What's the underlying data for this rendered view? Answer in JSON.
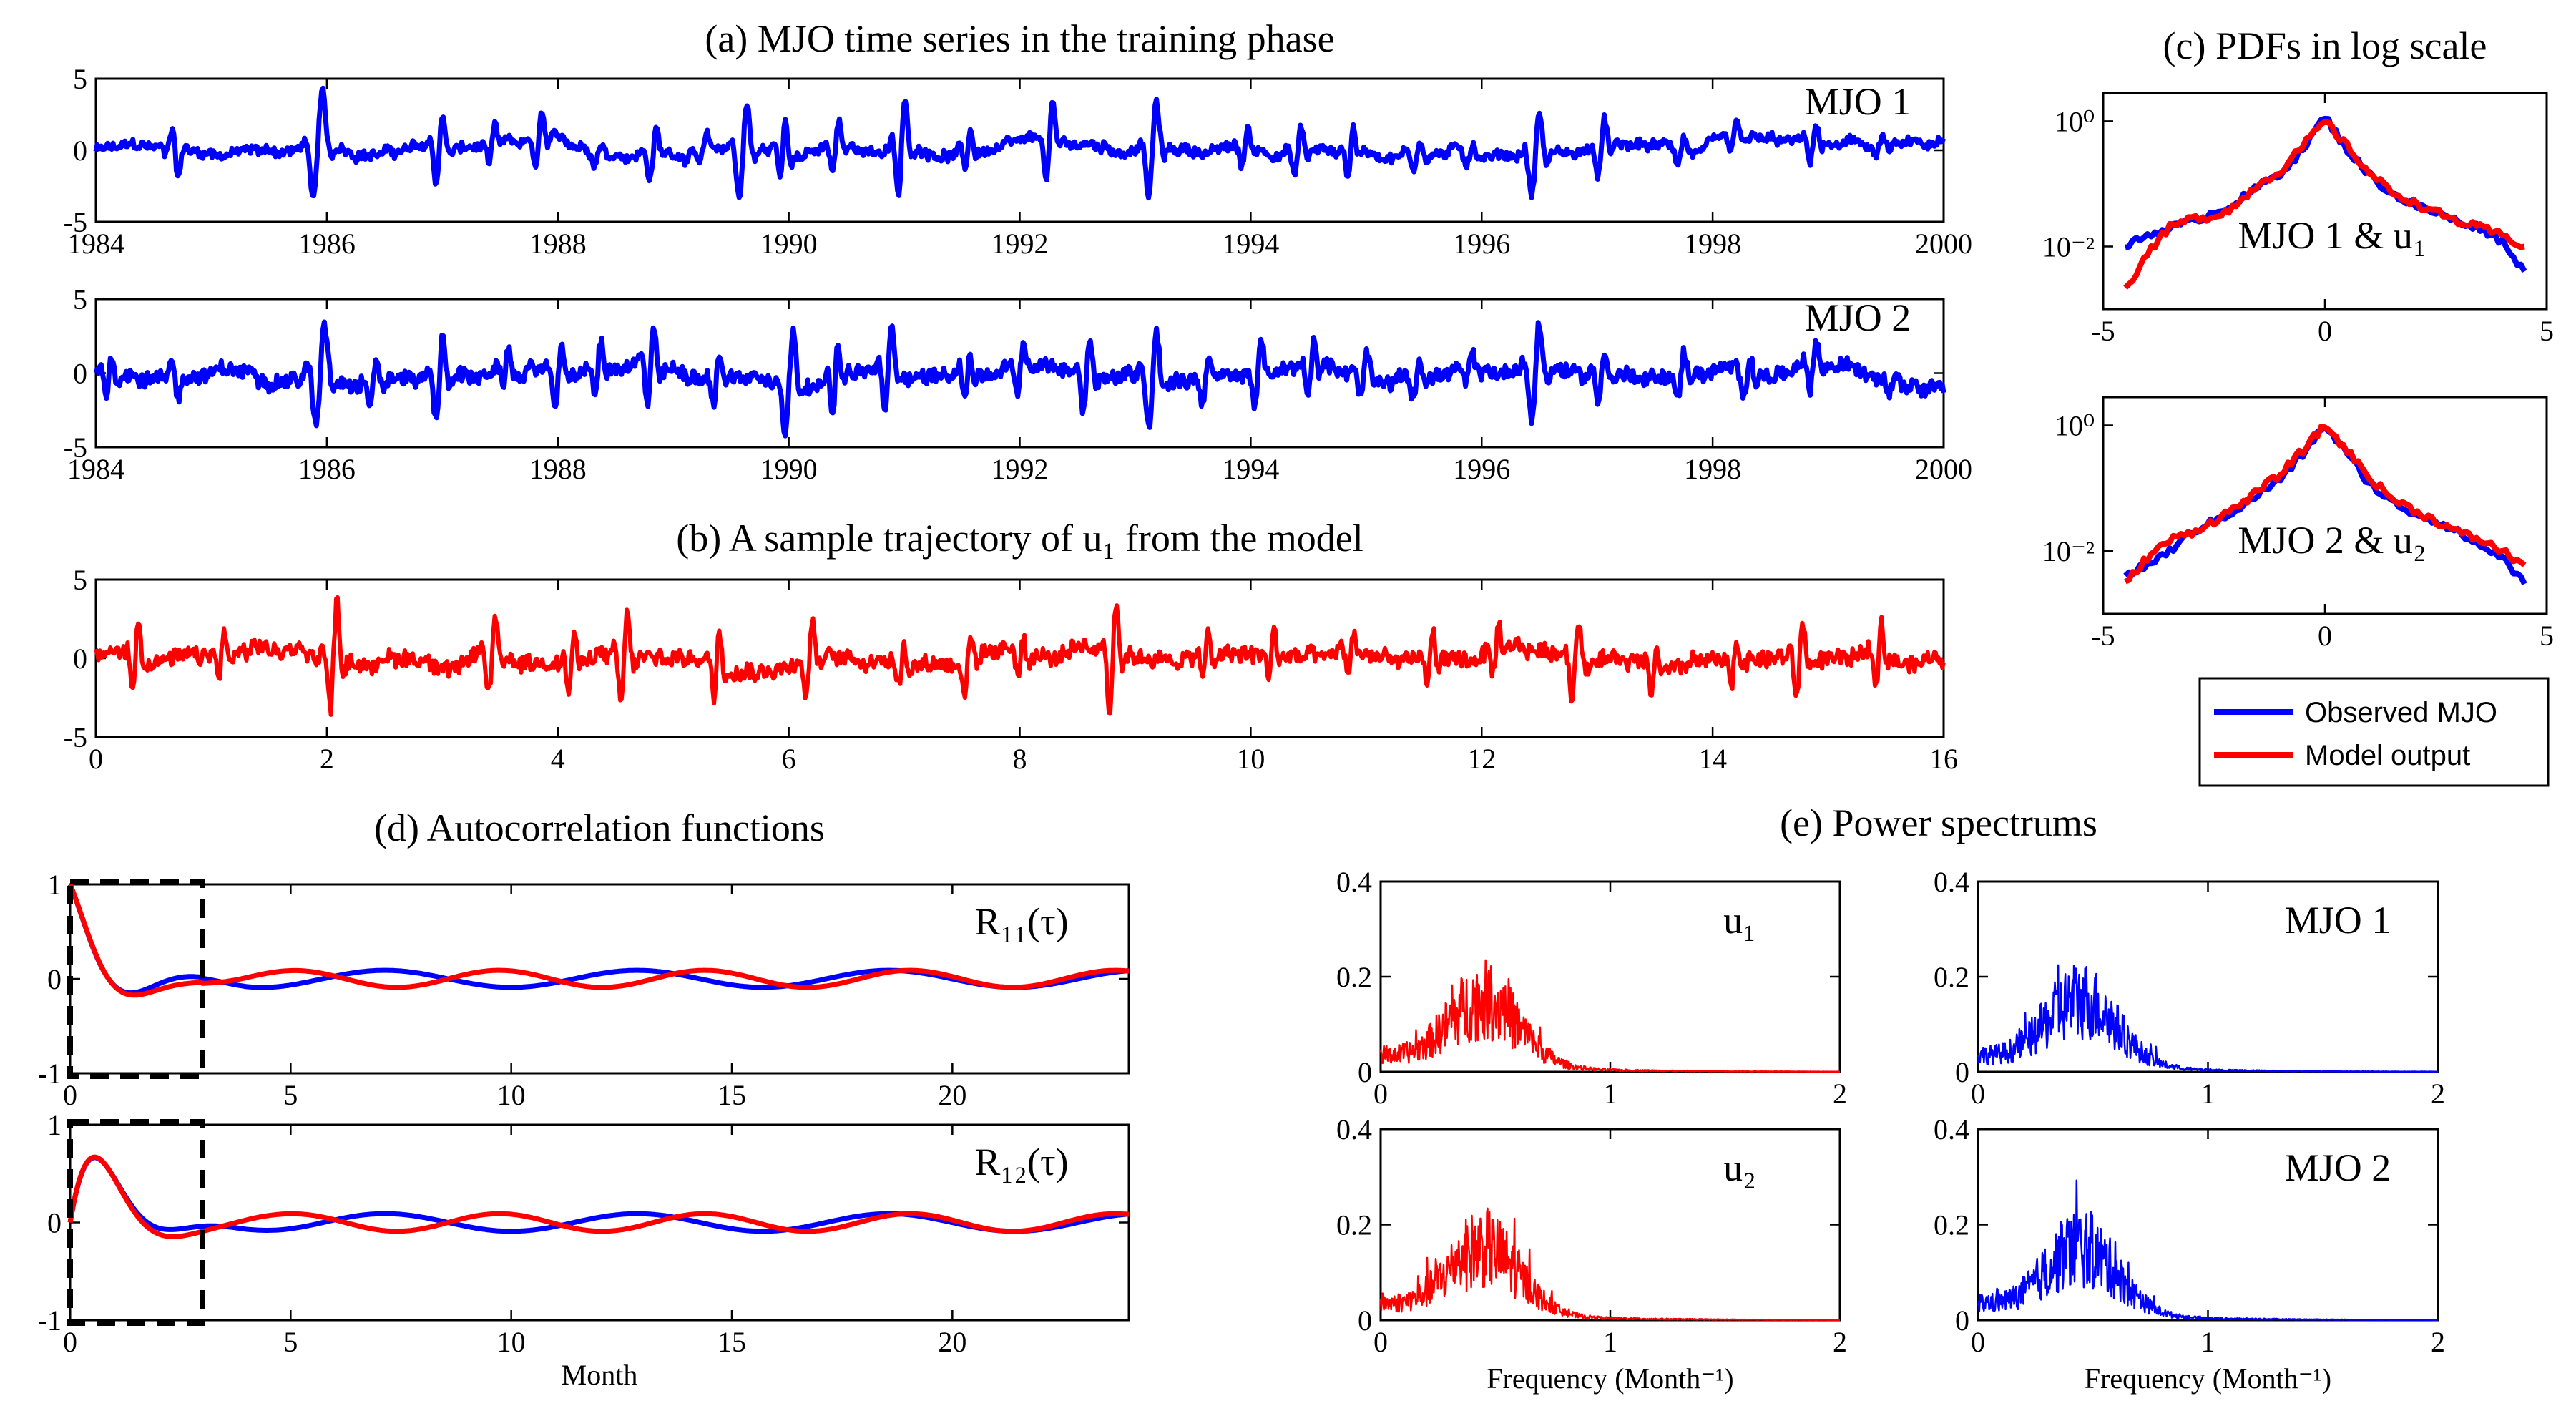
{
  "colors": {
    "observed": "#0000ff",
    "model": "#ff0000",
    "box": "#000000"
  },
  "chart_data": [
    {
      "id": "mjo1",
      "type": "line",
      "title": "(a) MJO time series in the training phase",
      "label": "MJO 1",
      "xlim": [
        1984,
        2000
      ],
      "ylim": [
        -5,
        5
      ],
      "xticks": [
        1984,
        1986,
        1988,
        1990,
        1992,
        1994,
        1996,
        1998,
        2000
      ],
      "yticks": [
        -5,
        0,
        5
      ],
      "series": [
        {
          "color": "#0000ff"
        }
      ]
    },
    {
      "id": "mjo2",
      "type": "line",
      "label": "MJO 2",
      "xlim": [
        1984,
        2000
      ],
      "ylim": [
        -5,
        5
      ],
      "xticks": [
        1984,
        1986,
        1988,
        1990,
        1992,
        1994,
        1996,
        1998,
        2000
      ],
      "yticks": [
        -5,
        0,
        5
      ],
      "series": [
        {
          "color": "#0000ff"
        }
      ]
    },
    {
      "id": "traj",
      "type": "line",
      "title": "(b) A sample trajectory of u₁ from the model",
      "xlim": [
        0,
        16
      ],
      "ylim": [
        -5,
        5
      ],
      "xticks": [
        0,
        2,
        4,
        6,
        8,
        10,
        12,
        14,
        16
      ],
      "yticks": [
        -5,
        0,
        5
      ],
      "series": [
        {
          "color": "#ff0000"
        }
      ]
    },
    {
      "id": "pdf1",
      "type": "line",
      "title": "(c) PDFs in log scale",
      "label": "MJO 1 & u₁",
      "xlim": [
        -5,
        5
      ],
      "yscale": "log",
      "yticks": [
        "10⁰",
        "10⁻²"
      ],
      "xticks": [
        -5,
        0,
        5
      ],
      "series": [
        {
          "name": "Observed MJO",
          "color": "#0000ff",
          "x": [
            -4.5,
            -4,
            -3.5,
            -3,
            -2.5,
            -2,
            -1.5,
            -1,
            -0.5,
            0,
            0.5,
            1,
            1.5,
            2,
            2.5,
            3,
            3.5,
            4,
            4.5
          ],
          "y": [
            0.01,
            0.015,
            0.02,
            0.025,
            0.035,
            0.05,
            0.09,
            0.15,
            0.35,
            1.2,
            0.35,
            0.14,
            0.07,
            0.045,
            0.035,
            0.025,
            0.02,
            0.012,
            0.004
          ]
        },
        {
          "name": "Model output",
          "color": "#ff0000",
          "x": [
            -4.5,
            -4,
            -3.5,
            -3,
            -2.5,
            -2,
            -1.5,
            -1,
            -0.5,
            0,
            0.5,
            1,
            1.5,
            2,
            2.5,
            3,
            3.5,
            4,
            4.5
          ],
          "y": [
            0.002,
            0.008,
            0.02,
            0.028,
            0.03,
            0.045,
            0.1,
            0.16,
            0.4,
            1.0,
            0.4,
            0.15,
            0.075,
            0.05,
            0.035,
            0.025,
            0.02,
            0.015,
            0.01
          ]
        }
      ]
    },
    {
      "id": "pdf2",
      "type": "line",
      "label": "MJO 2 & u₂",
      "xlim": [
        -5,
        5
      ],
      "yscale": "log",
      "yticks": [
        "10⁰",
        "10⁻²"
      ],
      "xticks": [
        -5,
        0,
        5
      ],
      "series": [
        {
          "name": "Observed MJO",
          "color": "#0000ff",
          "x": [
            -4.5,
            -4,
            -3.5,
            -3,
            -2.5,
            -2,
            -1.5,
            -1,
            -0.5,
            0,
            0.5,
            1,
            1.5,
            2,
            2.5,
            3,
            3.5,
            4,
            4.5
          ],
          "y": [
            0.004,
            0.006,
            0.01,
            0.02,
            0.03,
            0.045,
            0.08,
            0.14,
            0.35,
            1.0,
            0.35,
            0.12,
            0.06,
            0.04,
            0.03,
            0.02,
            0.012,
            0.008,
            0.003
          ]
        },
        {
          "name": "Model output",
          "color": "#ff0000",
          "x": [
            -4.5,
            -4,
            -3.5,
            -3,
            -2.5,
            -2,
            -1.5,
            -1,
            -0.5,
            0,
            0.5,
            1,
            1.5,
            2,
            2.5,
            3,
            3.5,
            4,
            4.5
          ],
          "y": [
            0.003,
            0.008,
            0.015,
            0.02,
            0.03,
            0.05,
            0.09,
            0.17,
            0.4,
            1.0,
            0.4,
            0.15,
            0.07,
            0.045,
            0.03,
            0.02,
            0.015,
            0.01,
            0.006
          ]
        }
      ]
    },
    {
      "id": "acf11",
      "type": "line",
      "title": "(d) Autocorrelation functions",
      "label": "R₁₁(τ)",
      "xlim": [
        0,
        24
      ],
      "ylim": [
        -1,
        1
      ],
      "xticks": [
        0,
        5,
        10,
        15,
        20
      ],
      "yticks": [
        -1,
        0,
        1
      ],
      "highlight_box": [
        0,
        3
      ],
      "series": [
        {
          "color": "#0000ff"
        },
        {
          "color": "#ff0000"
        }
      ]
    },
    {
      "id": "acf12",
      "type": "line",
      "label": "R₁₂(τ)",
      "xlabel": "Month",
      "xlim": [
        0,
        24
      ],
      "ylim": [
        -1,
        1
      ],
      "xticks": [
        0,
        5,
        10,
        15,
        20
      ],
      "yticks": [
        -1,
        0,
        1
      ],
      "highlight_box": [
        0,
        3
      ],
      "series": [
        {
          "color": "#0000ff"
        },
        {
          "color": "#ff0000"
        }
      ]
    },
    {
      "id": "ps_u1",
      "type": "line",
      "title": "(e)  Power spectrums",
      "label": "u₁",
      "xlim": [
        0,
        2
      ],
      "ylim": [
        0,
        0.4
      ],
      "xticks": [
        0,
        1,
        2
      ],
      "yticks": [
        0,
        0.2,
        0.4
      ],
      "series": [
        {
          "color": "#ff0000"
        }
      ]
    },
    {
      "id": "ps_mjo1",
      "type": "line",
      "label": "MJO 1",
      "xlim": [
        0,
        2
      ],
      "ylim": [
        0,
        0.4
      ],
      "xticks": [
        0,
        1,
        2
      ],
      "yticks": [
        0,
        0.2,
        0.4
      ],
      "series": [
        {
          "color": "#0000ff"
        }
      ]
    },
    {
      "id": "ps_u2",
      "type": "line",
      "label": "u₂",
      "xlabel": "Frequency (Month⁻¹)",
      "xlim": [
        0,
        2
      ],
      "ylim": [
        0,
        0.4
      ],
      "xticks": [
        0,
        1,
        2
      ],
      "yticks": [
        0,
        0.2,
        0.4
      ],
      "series": [
        {
          "color": "#ff0000"
        }
      ]
    },
    {
      "id": "ps_mjo2",
      "type": "line",
      "label": "MJO 2",
      "xlabel": "Frequency (Month⁻¹)",
      "xlim": [
        0,
        2
      ],
      "ylim": [
        0,
        0.4
      ],
      "xticks": [
        0,
        1,
        2
      ],
      "yticks": [
        0,
        0.2,
        0.4
      ],
      "series": [
        {
          "color": "#0000ff"
        }
      ]
    }
  ],
  "legend": {
    "items": [
      {
        "label": "Observed MJO",
        "color": "#0000ff"
      },
      {
        "label": "Model output",
        "color": "#ff0000"
      }
    ]
  }
}
